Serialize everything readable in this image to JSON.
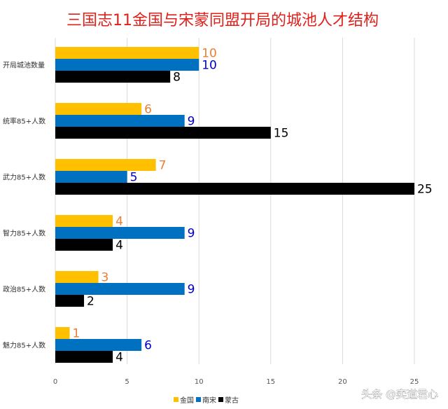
{
  "chart_data": {
    "type": "bar",
    "orientation": "horizontal",
    "title": "三国志11金国与宋蒙同盟开局的城池人才结构",
    "categories": [
      "开局城池数量",
      "统率85+人数",
      "武力85+人数",
      "智力85+人数",
      "政治85+人数",
      "魅力85+人数"
    ],
    "series": [
      {
        "name": "金国",
        "color": "#FFC000",
        "label_color": "#ED7D31",
        "values": [
          10,
          6,
          7,
          4,
          3,
          1
        ]
      },
      {
        "name": "南宋",
        "color": "#0070C0",
        "label_color": "#0000CC",
        "values": [
          10,
          9,
          5,
          9,
          9,
          6
        ]
      },
      {
        "name": "蒙古",
        "color": "#000000",
        "label_color": "#000000",
        "values": [
          8,
          15,
          25,
          4,
          2,
          4
        ]
      }
    ],
    "xlim": [
      0,
      25
    ],
    "xticks": [
      0,
      5,
      10,
      15,
      20,
      25
    ],
    "xlabel": "",
    "ylabel": "",
    "grid": true,
    "legend_position": "bottom-center",
    "data_labels": true
  },
  "watermark": "头条 @奕道君心"
}
